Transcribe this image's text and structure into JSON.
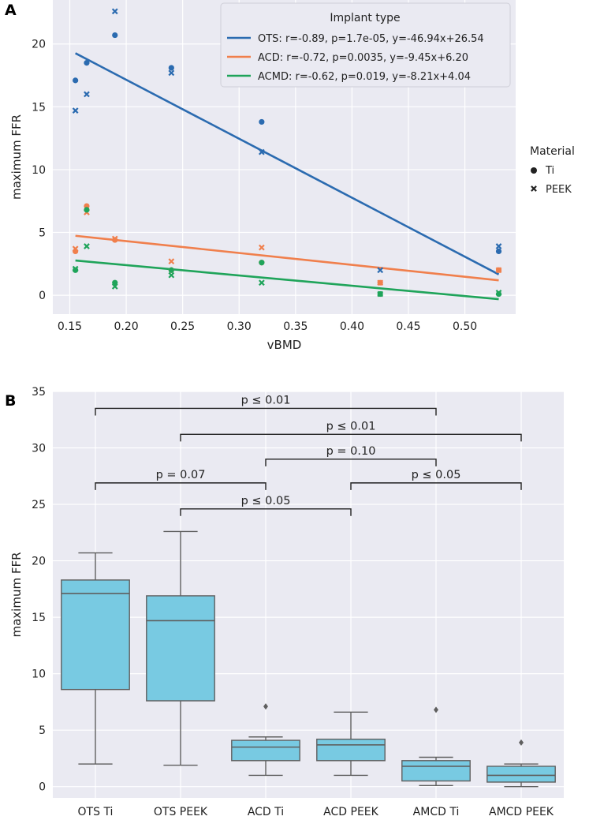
{
  "chart_data": [
    {
      "panel": "A",
      "type": "scatter",
      "xlabel": "vBMD",
      "ylabel": "maximum FFR",
      "xlim": [
        0.135,
        0.545
      ],
      "ylim": [
        -1.5,
        23.5
      ],
      "xticks": [
        0.15,
        0.2,
        0.25,
        0.3,
        0.35,
        0.4,
        0.45,
        0.5
      ],
      "yticks": [
        0,
        5,
        10,
        15,
        20
      ],
      "grid": true,
      "legend_implant": {
        "title": "Implant type",
        "position": "top-right",
        "entries": [
          "OTS: r=-0.89, p=1.7e-05, y=-46.94x+26.54",
          "ACD: r=-0.72, p=0.0035, y=-9.45x+6.20",
          "ACMD: r=-0.62, p=0.019, y=-8.21x+4.04"
        ]
      },
      "legend_material": {
        "title": "Material",
        "position": "outside-right",
        "entries": [
          "Ti",
          "PEEK"
        ]
      },
      "series": [
        {
          "name": "OTS",
          "color": "#2b6bb0",
          "fit": {
            "slope": -46.94,
            "intercept": 26.54
          },
          "ti": [
            [
              0.155,
              17.1
            ],
            [
              0.165,
              18.5
            ],
            [
              0.19,
              20.7
            ],
            [
              0.24,
              18.1
            ],
            [
              0.32,
              13.8
            ],
            [
              0.53,
              3.5
            ]
          ],
          "peek": [
            [
              0.155,
              14.7
            ],
            [
              0.165,
              16.0
            ],
            [
              0.19,
              22.6
            ],
            [
              0.24,
              17.7
            ],
            [
              0.32,
              11.4
            ],
            [
              0.425,
              2.0
            ],
            [
              0.53,
              3.9
            ]
          ]
        },
        {
          "name": "ACD",
          "color": "#f07f4c",
          "fit": {
            "slope": -9.45,
            "intercept": 6.2
          },
          "ti": [
            [
              0.155,
              3.5
            ],
            [
              0.165,
              7.1
            ],
            [
              0.19,
              4.4
            ],
            [
              0.24,
              2.0
            ],
            [
              0.32,
              2.6
            ],
            [
              0.425,
              1.0
            ],
            [
              0.53,
              2.0
            ]
          ],
          "peek": [
            [
              0.155,
              3.7
            ],
            [
              0.165,
              6.6
            ],
            [
              0.19,
              4.5
            ],
            [
              0.24,
              2.7
            ],
            [
              0.32,
              3.8
            ],
            [
              0.425,
              1.0
            ],
            [
              0.53,
              2.0
            ]
          ]
        },
        {
          "name": "ACMD",
          "color": "#1fa45a",
          "fit": {
            "slope": -8.21,
            "intercept": 4.04
          },
          "ti": [
            [
              0.155,
              2.0
            ],
            [
              0.165,
              6.8
            ],
            [
              0.19,
              1.0
            ],
            [
              0.24,
              2.0
            ],
            [
              0.32,
              2.6
            ],
            [
              0.425,
              0.1
            ],
            [
              0.53,
              0.1
            ]
          ],
          "peek": [
            [
              0.155,
              2.1
            ],
            [
              0.165,
              3.9
            ],
            [
              0.19,
              0.7
            ],
            [
              0.24,
              1.6
            ],
            [
              0.32,
              1.0
            ],
            [
              0.425,
              0.1
            ],
            [
              0.53,
              0.2
            ]
          ]
        }
      ]
    },
    {
      "panel": "B",
      "type": "box",
      "ylabel": "maximum FFR",
      "ylim": [
        -1,
        35
      ],
      "yticks": [
        0,
        5,
        10,
        15,
        20,
        25,
        30,
        35
      ],
      "grid": true,
      "box_color": "#78cae2",
      "categories": [
        "OTS Ti",
        "OTS PEEK",
        "ACD Ti",
        "ACD PEEK",
        "AMCD Ti",
        "AMCD PEEK"
      ],
      "boxes": [
        {
          "whislo": 2.0,
          "q1": 8.6,
          "med": 17.1,
          "q3": 18.3,
          "whishi": 20.7,
          "fliers": []
        },
        {
          "whislo": 1.9,
          "q1": 7.6,
          "med": 14.7,
          "q3": 16.9,
          "whishi": 22.6,
          "fliers": []
        },
        {
          "whislo": 1.0,
          "q1": 2.3,
          "med": 3.5,
          "q3": 4.1,
          "whishi": 4.4,
          "fliers": [
            7.1
          ]
        },
        {
          "whislo": 1.0,
          "q1": 2.3,
          "med": 3.7,
          "q3": 4.2,
          "whishi": 6.6,
          "fliers": []
        },
        {
          "whislo": 0.1,
          "q1": 0.5,
          "med": 1.8,
          "q3": 2.3,
          "whishi": 2.6,
          "fliers": [
            6.8
          ]
        },
        {
          "whislo": 0.0,
          "q1": 0.4,
          "med": 1.0,
          "q3": 1.8,
          "whishi": 2.0,
          "fliers": [
            3.9
          ]
        }
      ],
      "annotations": [
        {
          "from": 0,
          "to": 4,
          "y": 33.5,
          "label": "p ≤ 0.01"
        },
        {
          "from": 1,
          "to": 5,
          "y": 31.2,
          "label": "p ≤ 0.01"
        },
        {
          "from": 2,
          "to": 4,
          "y": 29.0,
          "label": "p = 0.10"
        },
        {
          "from": 0,
          "to": 2,
          "y": 26.9,
          "label": "p = 0.07"
        },
        {
          "from": 3,
          "to": 5,
          "y": 26.9,
          "label": "p ≤ 0.05"
        },
        {
          "from": 1,
          "to": 3,
          "y": 24.6,
          "label": "p ≤ 0.05"
        }
      ]
    }
  ],
  "labels": {
    "panel_a": "A",
    "panel_b": "B"
  }
}
